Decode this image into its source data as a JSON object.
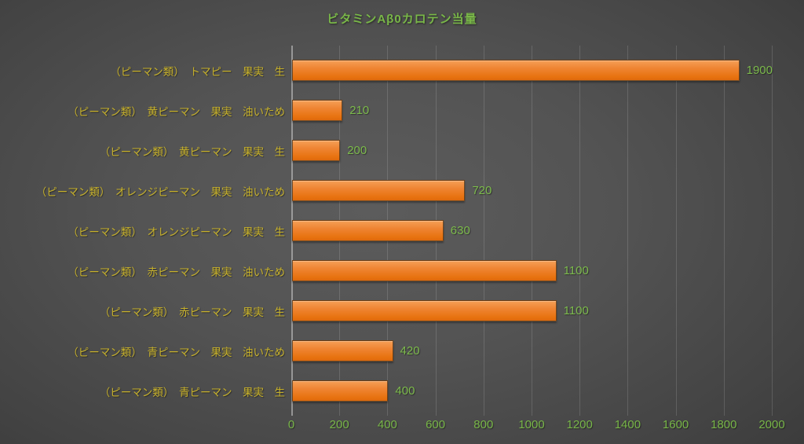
{
  "chart_data": {
    "type": "bar",
    "orientation": "horizontal",
    "title": "ビタミンAβ0カロテン当量",
    "categories": [
      "（ピーマン類）　トマピー　果実　生",
      "（ピーマン類）　黄ピーマン　果実　油いため",
      "（ピーマン類）　黄ピーマン　果実　生",
      "（ピーマン類）　オレンジピーマン　果実　油いため",
      "（ピーマン類）　オレンジピーマン　果実　生",
      "（ピーマン類）　赤ピーマン　果実　油いため",
      "（ピーマン類）　赤ピーマン　果実　生",
      "（ピーマン類）　青ピーマン　果実　油いため",
      "（ピーマン類）　青ピーマン　果実　生"
    ],
    "values": [
      1900,
      210,
      200,
      720,
      630,
      1100,
      1100,
      420,
      400
    ],
    "value_labels": [
      "1900",
      "210",
      "200",
      "720",
      "630",
      "1100",
      "1100",
      "420",
      "400"
    ],
    "xlim": [
      0,
      2000
    ],
    "x_ticks": [
      "0",
      "200",
      "400",
      "600",
      "800",
      "1000",
      "1200",
      "1400",
      "1600",
      "1800",
      "2000"
    ],
    "grid": true,
    "legend": "none",
    "colors": {
      "bar": "#ED7D31",
      "title_text": "#79B748",
      "value_text": "#7CBA4C",
      "category_text": "#C7B12B",
      "tick_text": "#78B648",
      "background_center": "#575757",
      "background_edge": "#242424",
      "gridline": "rgba(255,255,255,0.14)"
    }
  }
}
